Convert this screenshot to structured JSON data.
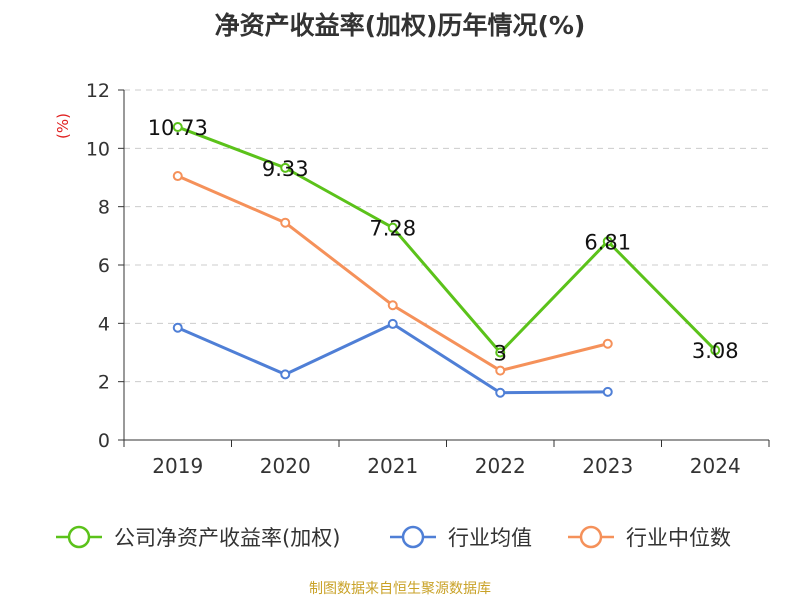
{
  "chart_data": {
    "type": "line",
    "title": "净资产收益率(加权)历年情况(%)",
    "ylabel": "(%)",
    "categories": [
      "2019",
      "2020",
      "2021",
      "2022",
      "2023",
      "2024"
    ],
    "ylim": [
      0,
      12
    ],
    "yticks": [
      0,
      2,
      4,
      6,
      8,
      10,
      12
    ],
    "grid": true,
    "legend_position": "bottom",
    "series": [
      {
        "name": "公司净资产收益率(加权)",
        "color": "#5bc21a",
        "values": [
          10.73,
          9.33,
          7.28,
          3,
          6.81,
          3.08
        ],
        "labels": [
          "10.73",
          "9.33",
          "7.28",
          "3",
          "6.81",
          "3.08"
        ]
      },
      {
        "name": "行业均值",
        "color": "#4f7fd6",
        "values": [
          3.85,
          2.25,
          3.98,
          1.62,
          1.65,
          null
        ]
      },
      {
        "name": "行业中位数",
        "color": "#f5915a",
        "values": [
          9.05,
          7.45,
          4.62,
          2.38,
          3.3,
          null
        ]
      }
    ]
  },
  "source": "制图数据来自恒生聚源数据库"
}
